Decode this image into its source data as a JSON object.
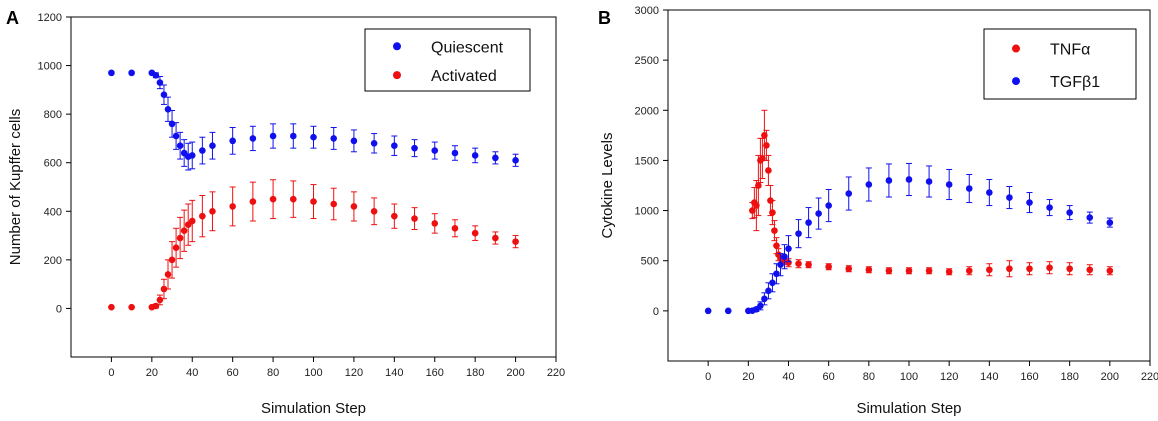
{
  "chart_data": [
    {
      "panel": "A",
      "type": "scatter",
      "xlabel": "Simulation Step",
      "ylabel": "Number of Kupffer cells",
      "xlim": [
        -20,
        220
      ],
      "ylim": [
        -200,
        1200
      ],
      "xticks": [
        0,
        20,
        40,
        60,
        80,
        100,
        120,
        140,
        160,
        180,
        200,
        220
      ],
      "yticks": [
        0,
        200,
        400,
        600,
        800,
        1000,
        1200
      ],
      "series": [
        {
          "name": "Quiescent",
          "color": "#1010ee",
          "x": [
            0,
            10,
            20,
            22,
            24,
            26,
            28,
            30,
            32,
            34,
            36,
            38,
            40,
            45,
            50,
            60,
            70,
            80,
            90,
            100,
            110,
            120,
            130,
            140,
            150,
            160,
            170,
            180,
            190,
            200
          ],
          "y": [
            970,
            970,
            970,
            960,
            930,
            880,
            820,
            760,
            710,
            670,
            640,
            625,
            630,
            650,
            670,
            690,
            700,
            710,
            710,
            705,
            700,
            690,
            680,
            670,
            660,
            650,
            640,
            630,
            620,
            610
          ],
          "err": [
            5,
            5,
            5,
            10,
            25,
            40,
            50,
            55,
            55,
            55,
            55,
            55,
            55,
            55,
            55,
            55,
            50,
            50,
            50,
            45,
            45,
            45,
            40,
            40,
            35,
            35,
            30,
            30,
            25,
            25
          ]
        },
        {
          "name": "Activated",
          "color": "#ee1010",
          "x": [
            0,
            10,
            20,
            22,
            24,
            26,
            28,
            30,
            32,
            34,
            36,
            38,
            40,
            45,
            50,
            60,
            70,
            80,
            90,
            100,
            110,
            120,
            130,
            140,
            150,
            160,
            170,
            180,
            190,
            200
          ],
          "y": [
            5,
            5,
            5,
            10,
            35,
            80,
            140,
            200,
            250,
            290,
            320,
            345,
            360,
            380,
            400,
            420,
            440,
            450,
            450,
            440,
            430,
            420,
            400,
            380,
            370,
            350,
            330,
            310,
            290,
            275
          ],
          "err": [
            3,
            3,
            3,
            8,
            20,
            40,
            60,
            75,
            80,
            85,
            85,
            85,
            85,
            85,
            80,
            80,
            80,
            80,
            75,
            70,
            65,
            60,
            55,
            50,
            45,
            40,
            35,
            30,
            25,
            25
          ]
        }
      ],
      "legend": {
        "placement": "top-right",
        "entries": [
          "Quiescent",
          "Activated"
        ]
      }
    },
    {
      "panel": "B",
      "type": "scatter",
      "xlabel": "Simulation Step",
      "ylabel": "Cytokine Levels",
      "xlim": [
        -20,
        220
      ],
      "ylim": [
        -500,
        3000
      ],
      "xticks": [
        0,
        20,
        40,
        60,
        80,
        100,
        120,
        140,
        160,
        180,
        200,
        220
      ],
      "yticks": [
        0,
        500,
        1000,
        1500,
        2000,
        2500,
        3000
      ],
      "series": [
        {
          "name": "TNFα",
          "color": "#ee1010",
          "x": [
            22,
            23,
            24,
            25,
            26,
            27,
            28,
            29,
            30,
            31,
            32,
            33,
            34,
            35,
            36,
            38,
            40,
            45,
            50,
            60,
            70,
            80,
            90,
            100,
            110,
            120,
            130,
            140,
            150,
            160,
            170,
            180,
            190,
            200
          ],
          "y": [
            1000,
            1080,
            1050,
            1250,
            1500,
            1520,
            1750,
            1650,
            1400,
            1100,
            980,
            800,
            650,
            560,
            520,
            500,
            480,
            470,
            460,
            440,
            420,
            410,
            400,
            400,
            400,
            390,
            400,
            410,
            420,
            420,
            430,
            420,
            410,
            400
          ],
          "err": [
            80,
            150,
            250,
            300,
            220,
            200,
            250,
            150,
            150,
            150,
            120,
            100,
            80,
            60,
            50,
            40,
            40,
            40,
            30,
            30,
            30,
            30,
            30,
            30,
            30,
            30,
            40,
            60,
            80,
            60,
            60,
            60,
            50,
            40
          ]
        },
        {
          "name": "TGFβ1",
          "color": "#1010ee",
          "x": [
            0,
            10,
            20,
            22,
            24,
            26,
            28,
            30,
            32,
            34,
            36,
            38,
            40,
            45,
            50,
            55,
            60,
            70,
            80,
            90,
            100,
            110,
            120,
            130,
            140,
            150,
            160,
            170,
            180,
            190,
            200
          ],
          "y": [
            0,
            0,
            0,
            2,
            15,
            50,
            120,
            200,
            280,
            370,
            460,
            540,
            620,
            770,
            880,
            970,
            1050,
            1170,
            1260,
            1300,
            1310,
            1290,
            1260,
            1220,
            1180,
            1130,
            1080,
            1030,
            980,
            930,
            880
          ],
          "err": [
            5,
            5,
            5,
            10,
            20,
            40,
            60,
            80,
            90,
            100,
            110,
            120,
            130,
            140,
            150,
            155,
            160,
            165,
            165,
            165,
            160,
            155,
            150,
            140,
            130,
            110,
            100,
            80,
            70,
            55,
            45
          ]
        }
      ],
      "legend": {
        "placement": "top-right",
        "entries": [
          "TNFα",
          "TGFβ1"
        ]
      }
    }
  ]
}
